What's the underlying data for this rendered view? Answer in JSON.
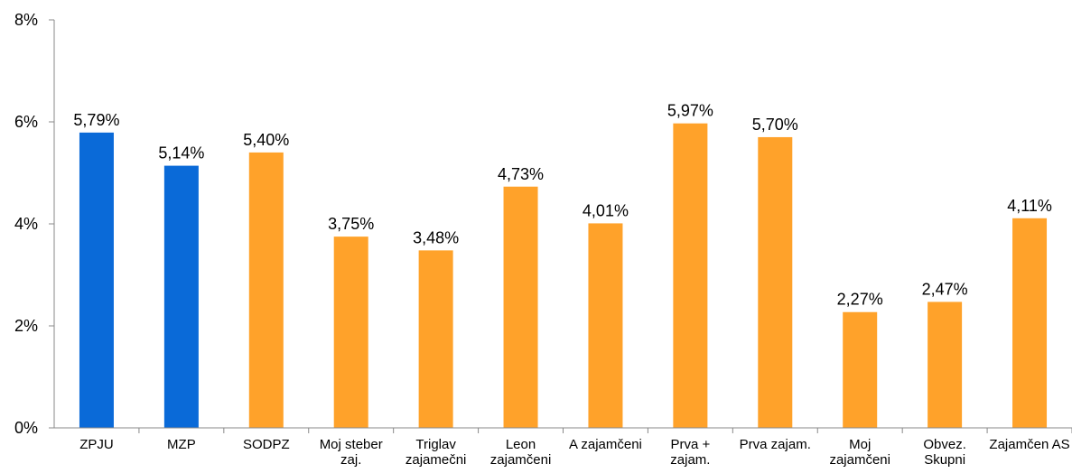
{
  "chart_data": {
    "type": "bar",
    "categories": [
      "ZPJU",
      "MZP",
      "SODPZ",
      "Moj steber zaj.",
      "Triglav zajamečni",
      "Leon zajamčeni",
      "A zajamčeni",
      "Prva + zajam.",
      "Prva zajam.",
      "Moj zajamčeni",
      "Obvez. Skupni",
      "Zajamčen AS"
    ],
    "values": [
      5.79,
      5.14,
      5.4,
      3.75,
      3.48,
      4.73,
      4.01,
      5.97,
      5.7,
      2.27,
      2.47,
      4.11
    ],
    "value_labels": [
      "5,79%",
      "5,14%",
      "5,40%",
      "3,75%",
      "3,48%",
      "4,73%",
      "4,01%",
      "5,97%",
      "5,70%",
      "2,27%",
      "2,47%",
      "4,11%"
    ],
    "colors": [
      "#0a6ad8",
      "#0a6ad8",
      "#ffa22a",
      "#ffa22a",
      "#ffa22a",
      "#ffa22a",
      "#ffa22a",
      "#ffa22a",
      "#ffa22a",
      "#ffa22a",
      "#ffa22a",
      "#ffa22a"
    ],
    "ylim": [
      0,
      8
    ],
    "yticks": [
      {
        "value": 0,
        "label": "0%"
      },
      {
        "value": 2,
        "label": "2%"
      },
      {
        "value": 4,
        "label": "4%"
      },
      {
        "value": 6,
        "label": "6%"
      },
      {
        "value": 8,
        "label": "8%"
      }
    ]
  }
}
